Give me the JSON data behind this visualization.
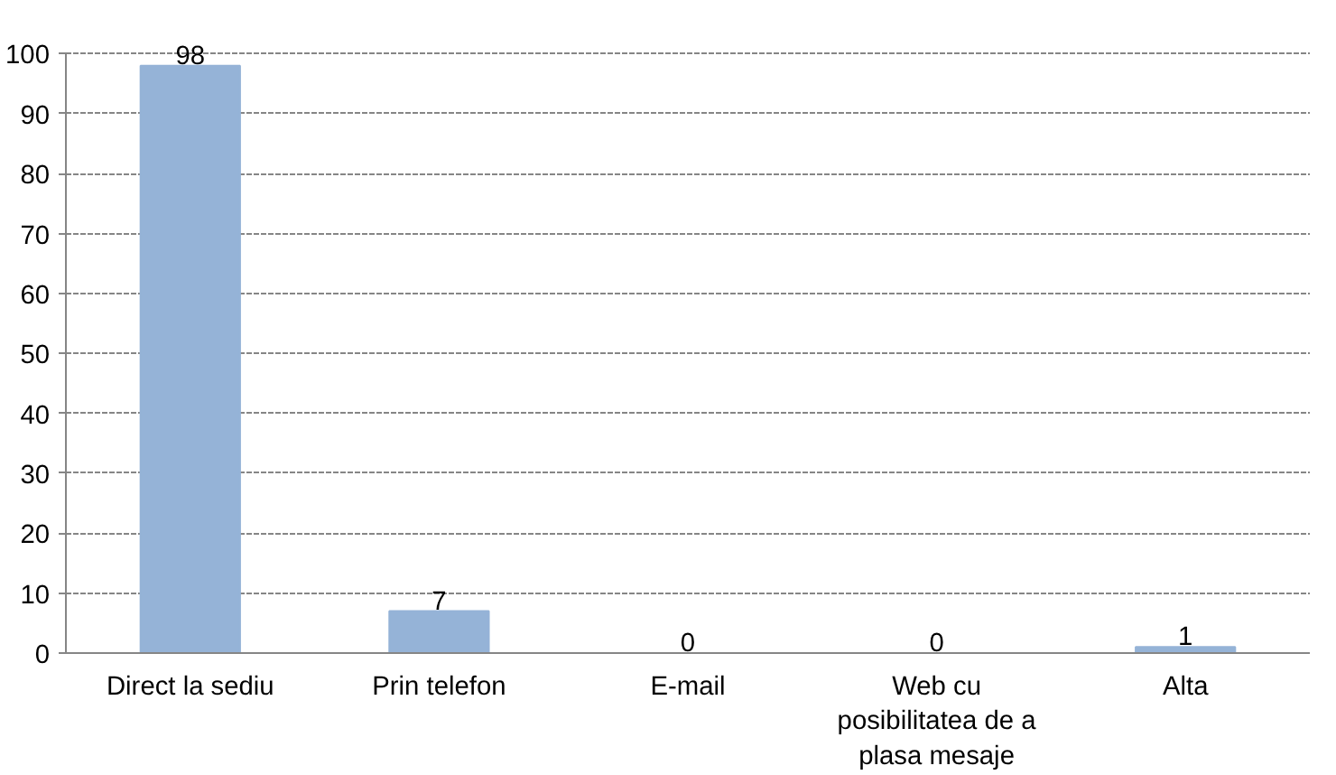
{
  "chart_data": {
    "type": "bar",
    "categories": [
      "Direct la sediu",
      "Prin telefon",
      "E-mail",
      "Web cu posibilitatea de a plasa mesaje",
      "Alta"
    ],
    "values": [
      98,
      7,
      0,
      0,
      1
    ],
    "color": "#95b3d7",
    "ylim": [
      0,
      100
    ],
    "yticks": [
      0,
      10,
      20,
      30,
      40,
      50,
      60,
      70,
      80,
      90,
      100
    ],
    "grid": "y",
    "data_labels": true
  }
}
